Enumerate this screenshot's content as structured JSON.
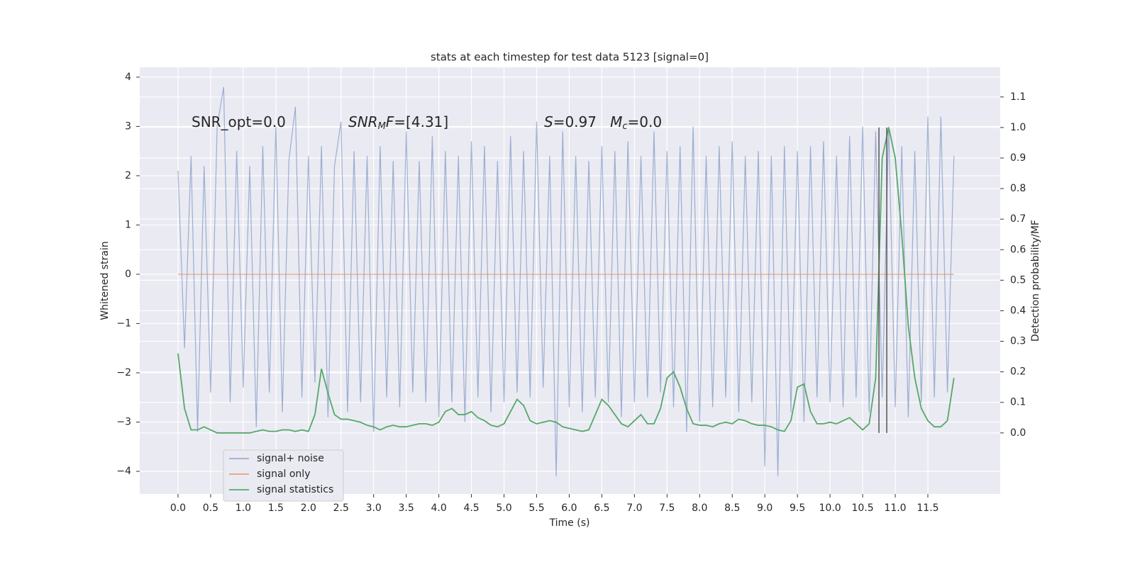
{
  "chart_data": {
    "type": "line",
    "title": "stats at each timestep for test data 5123 [signal=0]",
    "xlabel": "Time (s)",
    "ylabel": "Whitened strain",
    "y2label": "Detection probability/MF",
    "x": [
      0.0,
      0.1,
      0.2,
      0.3,
      0.4,
      0.5,
      0.6,
      0.7,
      0.8,
      0.9,
      1.0,
      1.1,
      1.2,
      1.3,
      1.4,
      1.5,
      1.6,
      1.7,
      1.8,
      1.9,
      2.0,
      2.1,
      2.2,
      2.3,
      2.4,
      2.5,
      2.6,
      2.7,
      2.8,
      2.9,
      3.0,
      3.1,
      3.2,
      3.3,
      3.4,
      3.5,
      3.6,
      3.7,
      3.8,
      3.9,
      4.0,
      4.1,
      4.2,
      4.3,
      4.4,
      4.5,
      4.6,
      4.7,
      4.8,
      4.9,
      5.0,
      5.1,
      5.2,
      5.3,
      5.4,
      5.5,
      5.6,
      5.7,
      5.8,
      5.9,
      6.0,
      6.1,
      6.2,
      6.3,
      6.4,
      6.5,
      6.6,
      6.7,
      6.8,
      6.9,
      7.0,
      7.1,
      7.2,
      7.3,
      7.4,
      7.5,
      7.6,
      7.7,
      7.8,
      7.9,
      8.0,
      8.1,
      8.2,
      8.3,
      8.4,
      8.5,
      8.6,
      8.7,
      8.8,
      8.9,
      9.0,
      9.1,
      9.2,
      9.3,
      9.4,
      9.5,
      9.6,
      9.7,
      9.8,
      9.9,
      10.0,
      10.1,
      10.2,
      10.3,
      10.4,
      10.5,
      10.6,
      10.7,
      10.8,
      10.9,
      11.0,
      11.1,
      11.2,
      11.3,
      11.4,
      11.5,
      11.6,
      11.7,
      11.8,
      11.9
    ],
    "series": [
      {
        "name": "signal+ noise",
        "color": "#4c72b0",
        "opacity": 0.5,
        "values": [
          2.1,
          -1.5,
          2.4,
          -3.2,
          2.2,
          -2.4,
          3.0,
          3.8,
          -2.6,
          2.5,
          -2.3,
          2.2,
          -3.1,
          2.6,
          -2.4,
          3.0,
          -2.8,
          2.3,
          3.4,
          -2.5,
          2.4,
          -2.2,
          2.6,
          -2.9,
          2.2,
          3.1,
          -2.8,
          2.5,
          -2.6,
          2.4,
          -3.2,
          2.6,
          -2.5,
          2.3,
          -2.7,
          2.9,
          -2.4,
          2.3,
          -2.6,
          2.8,
          -2.9,
          2.5,
          -2.6,
          2.4,
          -3.0,
          2.7,
          -2.5,
          2.6,
          -2.8,
          2.3,
          -2.6,
          2.8,
          -2.4,
          2.5,
          -2.5,
          3.1,
          -2.3,
          2.4,
          -4.1,
          2.9,
          -2.7,
          2.4,
          -2.8,
          2.3,
          -2.5,
          2.6,
          -2.6,
          2.5,
          -2.9,
          2.7,
          -2.6,
          2.4,
          -2.5,
          2.9,
          -2.4,
          2.5,
          -2.7,
          2.6,
          -3.2,
          3.0,
          -3.0,
          2.4,
          -2.7,
          2.6,
          -2.5,
          2.7,
          -2.8,
          2.4,
          -2.6,
          2.5,
          -3.9,
          2.4,
          -4.1,
          2.6,
          -2.8,
          2.5,
          -3.0,
          2.6,
          -2.5,
          2.7,
          -2.6,
          2.4,
          -2.7,
          2.8,
          -2.5,
          3.0,
          -2.8,
          2.9,
          -2.5,
          3.0,
          -2.7,
          2.6,
          -2.9,
          2.5,
          -2.6,
          3.2,
          -2.5,
          3.2,
          -2.4,
          2.4
        ]
      },
      {
        "name": "signal only",
        "color": "#dd8452",
        "opacity": 0.7,
        "values": [
          0,
          0,
          0,
          0,
          0,
          0,
          0,
          0,
          0,
          0,
          0,
          0,
          0,
          0,
          0,
          0,
          0,
          0,
          0,
          0,
          0,
          0,
          0,
          0,
          0,
          0,
          0,
          0,
          0,
          0,
          0,
          0,
          0,
          0,
          0,
          0,
          0,
          0,
          0,
          0,
          0,
          0,
          0,
          0,
          0,
          0,
          0,
          0,
          0,
          0,
          0,
          0,
          0,
          0,
          0,
          0,
          0,
          0,
          0,
          0,
          0,
          0,
          0,
          0,
          0,
          0,
          0,
          0,
          0,
          0,
          0,
          0,
          0,
          0,
          0,
          0,
          0,
          0,
          0,
          0,
          0,
          0,
          0,
          0,
          0,
          0,
          0,
          0,
          0,
          0,
          0,
          0,
          0,
          0,
          0,
          0,
          0,
          0,
          0,
          0,
          0,
          0,
          0,
          0,
          0,
          0,
          0,
          0,
          0,
          0,
          0,
          0,
          0,
          0,
          0,
          0,
          0,
          0,
          0,
          0
        ]
      },
      {
        "name": "signal statistics",
        "color": "#55a868",
        "opacity": 1,
        "axis": "y2",
        "values": [
          0.26,
          0.08,
          0.01,
          0.01,
          0.02,
          0.01,
          0.0,
          0.0,
          0.0,
          0.0,
          0.0,
          0.0,
          0.005,
          0.01,
          0.005,
          0.005,
          0.01,
          0.01,
          0.005,
          0.01,
          0.005,
          0.06,
          0.21,
          0.13,
          0.06,
          0.045,
          0.045,
          0.04,
          0.035,
          0.025,
          0.02,
          0.01,
          0.02,
          0.025,
          0.02,
          0.02,
          0.025,
          0.03,
          0.03,
          0.025,
          0.035,
          0.07,
          0.08,
          0.06,
          0.06,
          0.07,
          0.05,
          0.04,
          0.025,
          0.02,
          0.03,
          0.07,
          0.11,
          0.09,
          0.04,
          0.03,
          0.035,
          0.04,
          0.035,
          0.02,
          0.015,
          0.01,
          0.005,
          0.01,
          0.06,
          0.11,
          0.09,
          0.06,
          0.03,
          0.02,
          0.04,
          0.06,
          0.03,
          0.03,
          0.08,
          0.18,
          0.2,
          0.15,
          0.08,
          0.03,
          0.025,
          0.025,
          0.02,
          0.03,
          0.035,
          0.03,
          0.045,
          0.04,
          0.03,
          0.025,
          0.025,
          0.02,
          0.01,
          0.005,
          0.04,
          0.15,
          0.16,
          0.07,
          0.03,
          0.03,
          0.035,
          0.03,
          0.04,
          0.05,
          0.03,
          0.01,
          0.03,
          0.18,
          0.9,
          1.0,
          0.9,
          0.65,
          0.35,
          0.18,
          0.08,
          0.04,
          0.02,
          0.02,
          0.04,
          0.18
        ]
      }
    ],
    "vlines": [
      {
        "x": 10.75,
        "ymin": 0,
        "ymax": 1,
        "color": "#555555"
      },
      {
        "x": 10.87,
        "ymin": 0,
        "ymax": 1,
        "color": "#555555"
      }
    ],
    "annotations": [
      [
        {
          "text": "SNR_opt=0.0"
        }
      ],
      [
        {
          "text": "SNR",
          "italic": true
        },
        {
          "text": "M",
          "italic": true,
          "sub": true
        },
        {
          "text": "F",
          "italic": true
        },
        {
          "text": "=[4.31]"
        }
      ],
      [
        {
          "text": "S",
          "italic": true
        },
        {
          "text": "=0.97   "
        },
        {
          "text": "M",
          "italic": true
        },
        {
          "text": "c",
          "italic": true,
          "sub": true
        },
        {
          "text": "=0.0"
        }
      ]
    ],
    "xlim": [
      -0.587,
      12.61
    ],
    "ylim": [
      -4.46,
      4.2
    ],
    "y2lim": [
      -0.2,
      1.197
    ],
    "xticks": [
      {
        "value": 0,
        "label": "0.0"
      },
      0.5,
      {
        "value": 1,
        "label": "1.0"
      },
      1.5,
      {
        "value": 2,
        "label": "2.0"
      },
      2.5,
      {
        "value": 3,
        "label": "3.0"
      },
      3.5,
      {
        "value": 4,
        "label": "4.0"
      },
      4.5,
      {
        "value": 5,
        "label": "5.0"
      },
      5.5,
      {
        "value": 6,
        "label": "6.0"
      },
      6.5,
      {
        "value": 7,
        "label": "7.0"
      },
      7.5,
      {
        "value": 8,
        "label": "8.0"
      },
      8.5,
      {
        "value": 9,
        "label": "9.0"
      },
      9.5,
      {
        "value": 10,
        "label": "10.0"
      },
      10.5,
      {
        "value": 11,
        "label": "11.0"
      },
      11.5
    ],
    "yticks": [
      {
        "value": -4,
        "label": "−4"
      },
      {
        "value": -3,
        "label": "−3"
      },
      {
        "value": -2,
        "label": "−2"
      },
      {
        "value": -1,
        "label": "−1"
      },
      0,
      1,
      2,
      3,
      4
    ],
    "y2ticks": [
      {
        "value": 0,
        "label": "0.0"
      },
      0.1,
      0.2,
      0.3,
      0.4,
      0.5,
      0.6,
      0.7,
      0.8,
      0.9,
      {
        "value": 1,
        "label": "1.0"
      },
      1.1
    ],
    "grid": true,
    "legend": "lower left"
  }
}
